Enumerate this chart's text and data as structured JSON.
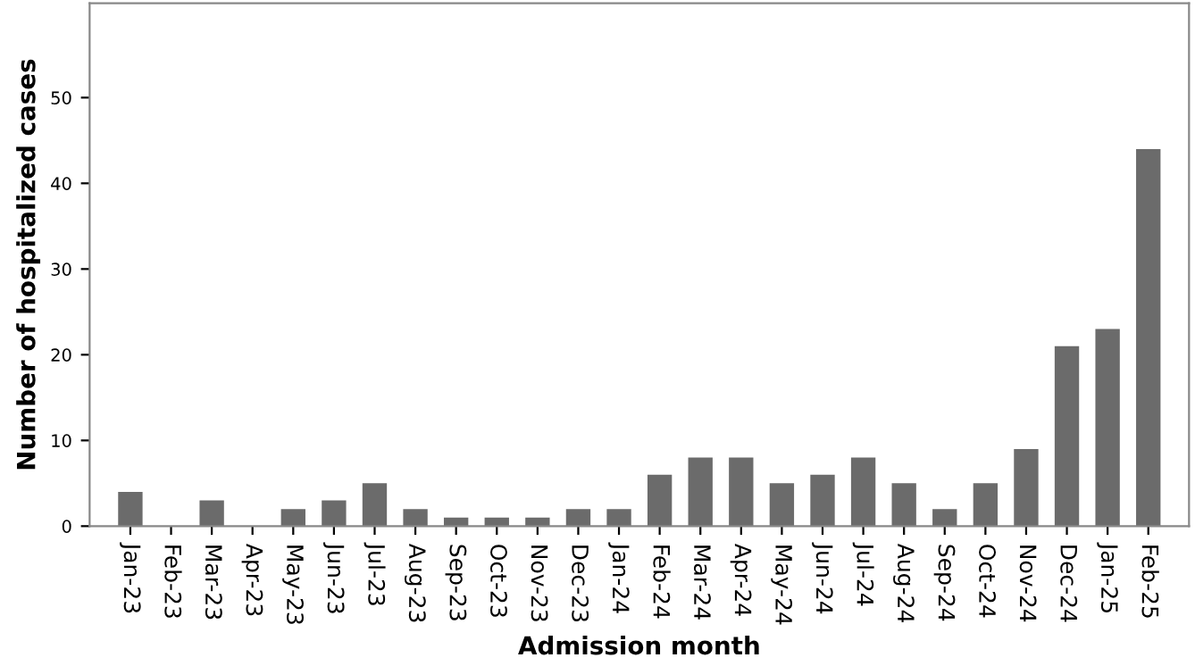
{
  "chart_data": {
    "type": "bar",
    "xlabel": "Admission month",
    "ylabel": "Number of hospitalized cases",
    "categories": [
      "Jan-23",
      "Feb-23",
      "Mar-23",
      "Apr-23",
      "May-23",
      "Jun-23",
      "Jul-23",
      "Aug-23",
      "Sep-23",
      "Oct-23",
      "Nov-23",
      "Dec-23",
      "Jan-24",
      "Feb-24",
      "Mar-24",
      "Apr-24",
      "May-24",
      "Jun-24",
      "Jul-24",
      "Aug-24",
      "Sep-24",
      "Oct-24",
      "Nov-24",
      "Dec-24",
      "Jan-25",
      "Feb-25"
    ],
    "values": [
      4,
      0,
      3,
      0,
      2,
      3,
      5,
      2,
      1,
      1,
      1,
      2,
      2,
      6,
      8,
      8,
      5,
      6,
      8,
      5,
      2,
      5,
      9,
      21,
      23,
      44
    ],
    "color": "#6b6b6b",
    "ylim": [
      0,
      61
    ],
    "yticks": [
      0,
      10,
      20,
      30,
      40,
      50
    ],
    "grid": false
  }
}
